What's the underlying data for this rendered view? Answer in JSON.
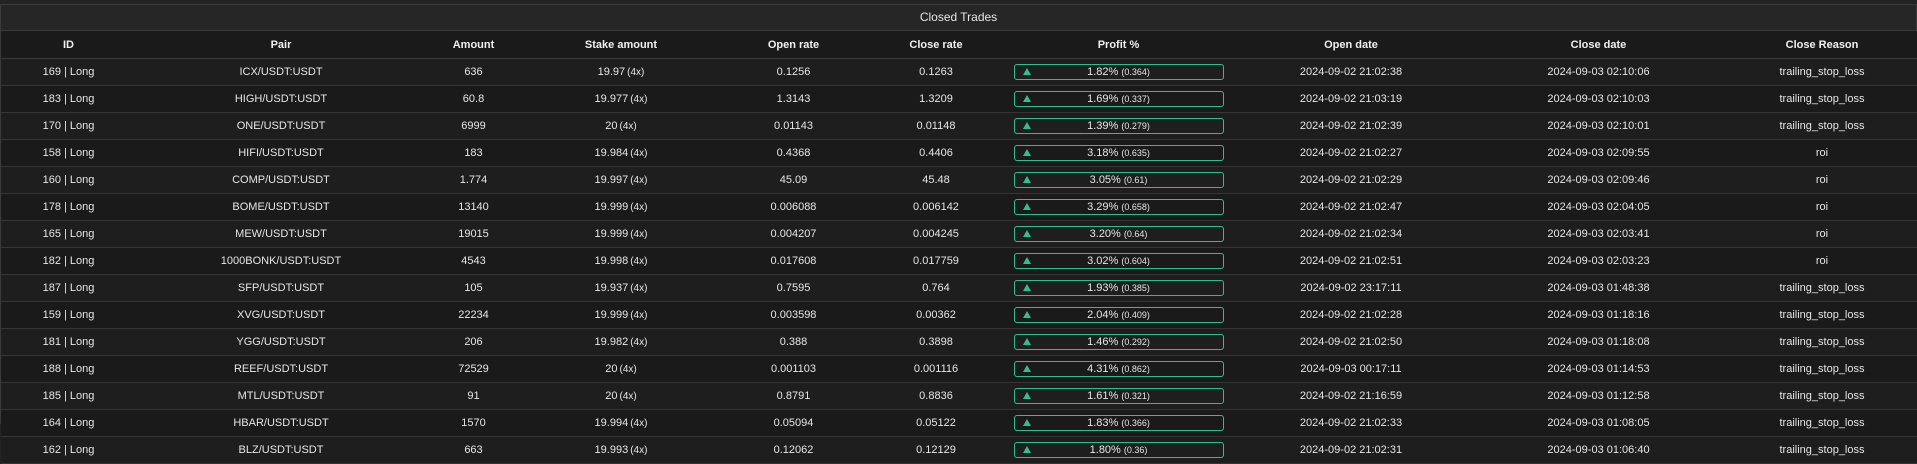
{
  "panel": {
    "title": "Closed Trades"
  },
  "colors": {
    "profit_accent": "#2fbf8f",
    "background": "#1a1a1a"
  },
  "columns": [
    "ID",
    "Pair",
    "Amount",
    "Stake amount",
    "Open rate",
    "Close rate",
    "Profit %",
    "Open date",
    "Close date",
    "Close Reason"
  ],
  "rows": [
    {
      "id": "169 | Long",
      "pair": "ICX/USDT:USDT",
      "amount": "636",
      "stake": "19.97",
      "mult": "(4x)",
      "open_rate": "0.1256",
      "close_rate": "0.1263",
      "profit_pct": "1.82%",
      "profit_abs": "(0.364)",
      "open_date": "2024-09-02 21:02:38",
      "close_date": "2024-09-03 02:10:06",
      "reason": "trailing_stop_loss"
    },
    {
      "id": "183 | Long",
      "pair": "HIGH/USDT:USDT",
      "amount": "60.8",
      "stake": "19.977",
      "mult": "(4x)",
      "open_rate": "1.3143",
      "close_rate": "1.3209",
      "profit_pct": "1.69%",
      "profit_abs": "(0.337)",
      "open_date": "2024-09-02 21:03:19",
      "close_date": "2024-09-03 02:10:03",
      "reason": "trailing_stop_loss"
    },
    {
      "id": "170 | Long",
      "pair": "ONE/USDT:USDT",
      "amount": "6999",
      "stake": "20",
      "mult": "(4x)",
      "open_rate": "0.01143",
      "close_rate": "0.01148",
      "profit_pct": "1.39%",
      "profit_abs": "(0.279)",
      "open_date": "2024-09-02 21:02:39",
      "close_date": "2024-09-03 02:10:01",
      "reason": "trailing_stop_loss"
    },
    {
      "id": "158 | Long",
      "pair": "HIFI/USDT:USDT",
      "amount": "183",
      "stake": "19.984",
      "mult": "(4x)",
      "open_rate": "0.4368",
      "close_rate": "0.4406",
      "profit_pct": "3.18%",
      "profit_abs": "(0.635)",
      "open_date": "2024-09-02 21:02:27",
      "close_date": "2024-09-03 02:09:55",
      "reason": "roi"
    },
    {
      "id": "160 | Long",
      "pair": "COMP/USDT:USDT",
      "amount": "1.774",
      "stake": "19.997",
      "mult": "(4x)",
      "open_rate": "45.09",
      "close_rate": "45.48",
      "profit_pct": "3.05%",
      "profit_abs": "(0.61)",
      "open_date": "2024-09-02 21:02:29",
      "close_date": "2024-09-03 02:09:46",
      "reason": "roi"
    },
    {
      "id": "178 | Long",
      "pair": "BOME/USDT:USDT",
      "amount": "13140",
      "stake": "19.999",
      "mult": "(4x)",
      "open_rate": "0.006088",
      "close_rate": "0.006142",
      "profit_pct": "3.29%",
      "profit_abs": "(0.658)",
      "open_date": "2024-09-02 21:02:47",
      "close_date": "2024-09-03 02:04:05",
      "reason": "roi"
    },
    {
      "id": "165 | Long",
      "pair": "MEW/USDT:USDT",
      "amount": "19015",
      "stake": "19.999",
      "mult": "(4x)",
      "open_rate": "0.004207",
      "close_rate": "0.004245",
      "profit_pct": "3.20%",
      "profit_abs": "(0.64)",
      "open_date": "2024-09-02 21:02:34",
      "close_date": "2024-09-03 02:03:41",
      "reason": "roi"
    },
    {
      "id": "182 | Long",
      "pair": "1000BONK/USDT:USDT",
      "amount": "4543",
      "stake": "19.998",
      "mult": "(4x)",
      "open_rate": "0.017608",
      "close_rate": "0.017759",
      "profit_pct": "3.02%",
      "profit_abs": "(0.604)",
      "open_date": "2024-09-02 21:02:51",
      "close_date": "2024-09-03 02:03:23",
      "reason": "roi"
    },
    {
      "id": "187 | Long",
      "pair": "SFP/USDT:USDT",
      "amount": "105",
      "stake": "19.937",
      "mult": "(4x)",
      "open_rate": "0.7595",
      "close_rate": "0.764",
      "profit_pct": "1.93%",
      "profit_abs": "(0.385)",
      "open_date": "2024-09-02 23:17:11",
      "close_date": "2024-09-03 01:48:38",
      "reason": "trailing_stop_loss"
    },
    {
      "id": "159 | Long",
      "pair": "XVG/USDT:USDT",
      "amount": "22234",
      "stake": "19.999",
      "mult": "(4x)",
      "open_rate": "0.003598",
      "close_rate": "0.00362",
      "profit_pct": "2.04%",
      "profit_abs": "(0.409)",
      "open_date": "2024-09-02 21:02:28",
      "close_date": "2024-09-03 01:18:16",
      "reason": "trailing_stop_loss"
    },
    {
      "id": "181 | Long",
      "pair": "YGG/USDT:USDT",
      "amount": "206",
      "stake": "19.982",
      "mult": "(4x)",
      "open_rate": "0.388",
      "close_rate": "0.3898",
      "profit_pct": "1.46%",
      "profit_abs": "(0.292)",
      "open_date": "2024-09-02 21:02:50",
      "close_date": "2024-09-03 01:18:08",
      "reason": "trailing_stop_loss"
    },
    {
      "id": "188 | Long",
      "pair": "REEF/USDT:USDT",
      "amount": "72529",
      "stake": "20",
      "mult": "(4x)",
      "open_rate": "0.001103",
      "close_rate": "0.001116",
      "profit_pct": "4.31%",
      "profit_abs": "(0.862)",
      "open_date": "2024-09-03 00:17:11",
      "close_date": "2024-09-03 01:14:53",
      "reason": "trailing_stop_loss"
    },
    {
      "id": "185 | Long",
      "pair": "MTL/USDT:USDT",
      "amount": "91",
      "stake": "20",
      "mult": "(4x)",
      "open_rate": "0.8791",
      "close_rate": "0.8836",
      "profit_pct": "1.61%",
      "profit_abs": "(0.321)",
      "open_date": "2024-09-02 21:16:59",
      "close_date": "2024-09-03 01:12:58",
      "reason": "trailing_stop_loss"
    },
    {
      "id": "164 | Long",
      "pair": "HBAR/USDT:USDT",
      "amount": "1570",
      "stake": "19.994",
      "mult": "(4x)",
      "open_rate": "0.05094",
      "close_rate": "0.05122",
      "profit_pct": "1.83%",
      "profit_abs": "(0.366)",
      "open_date": "2024-09-02 21:02:33",
      "close_date": "2024-09-03 01:08:05",
      "reason": "trailing_stop_loss"
    },
    {
      "id": "162 | Long",
      "pair": "BLZ/USDT:USDT",
      "amount": "663",
      "stake": "19.993",
      "mult": "(4x)",
      "open_rate": "0.12062",
      "close_rate": "0.12129",
      "profit_pct": "1.80%",
      "profit_abs": "(0.36)",
      "open_date": "2024-09-02 21:02:31",
      "close_date": "2024-09-03 01:06:40",
      "reason": "trailing_stop_loss"
    }
  ]
}
